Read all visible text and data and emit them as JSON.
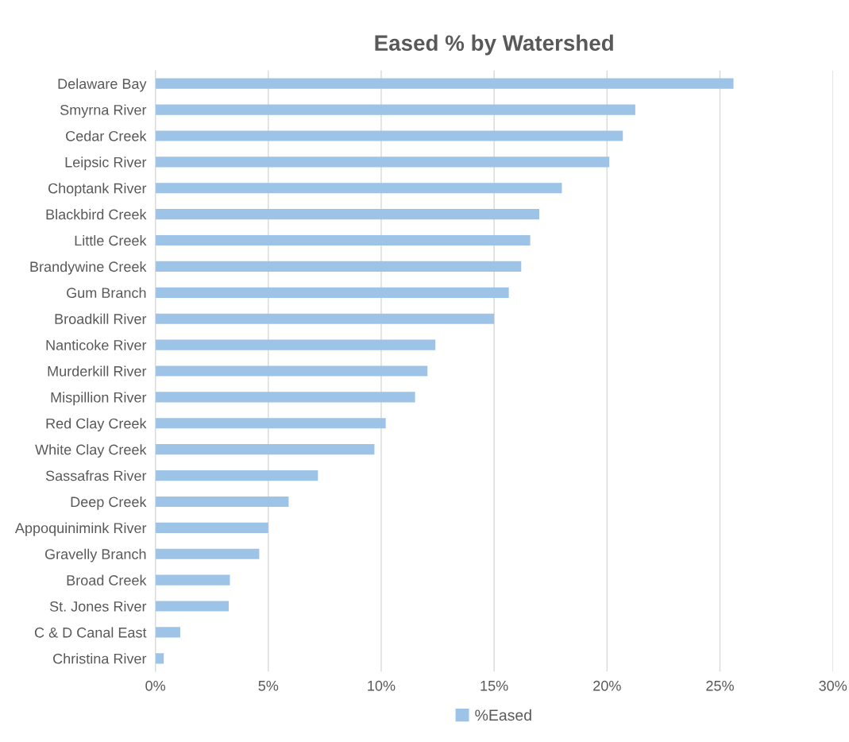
{
  "chart_data": {
    "type": "bar",
    "orientation": "horizontal",
    "title": "Eased % by Watershed",
    "categories": [
      "Delaware Bay",
      "Smyrna River",
      "Cedar Creek",
      "Leipsic River",
      "Choptank River",
      "Blackbird Creek",
      "Little Creek",
      "Brandywine Creek",
      "Gum Branch",
      "Broadkill River",
      "Nanticoke River",
      "Murderkill River",
      "Mispillion River",
      "Red Clay Creek",
      "White Clay Creek",
      "Sassafras River",
      "Deep Creek",
      "Appoquinimink River",
      "Gravelly Branch",
      "Broad Creek",
      "St. Jones River",
      "C & D Canal East",
      "Christina River"
    ],
    "series": [
      {
        "name": "%Eased",
        "color": "#9dc3e6",
        "values": [
          0.256,
          0.2125,
          0.207,
          0.201,
          0.18,
          0.17,
          0.166,
          0.162,
          0.1565,
          0.15,
          0.124,
          0.1205,
          0.115,
          0.102,
          0.097,
          0.072,
          0.059,
          0.05,
          0.046,
          0.033,
          0.0325,
          0.011,
          0.0037
        ]
      }
    ],
    "xlim": [
      0,
      0.3
    ],
    "xticks": [
      {
        "value": 0,
        "label": "0%"
      },
      {
        "value": 0.05,
        "label": "5%"
      },
      {
        "value": 0.1,
        "label": "10%"
      },
      {
        "value": 0.15,
        "label": "15%"
      },
      {
        "value": 0.2,
        "label": "20%"
      },
      {
        "value": 0.25,
        "label": "25%"
      },
      {
        "value": 0.3,
        "label": "30%"
      }
    ],
    "grid": "x",
    "legend": "bottom"
  }
}
